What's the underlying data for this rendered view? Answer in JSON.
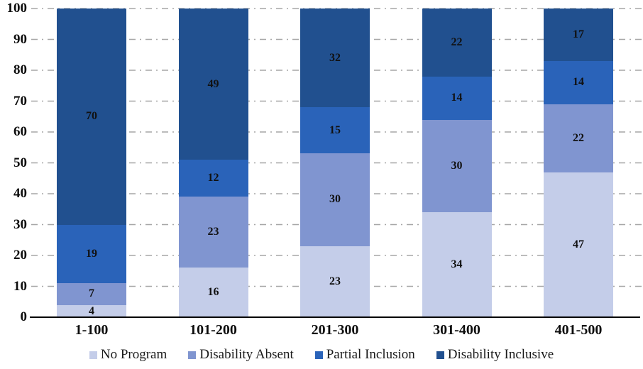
{
  "chart_data": {
    "type": "bar",
    "stacked": true,
    "orientation": "vertical",
    "categories": [
      "1-100",
      "101-200",
      "201-300",
      "301-400",
      "401-500"
    ],
    "series": [
      {
        "name": "No Program",
        "color": "#C4CDE9",
        "values": [
          4,
          16,
          23,
          34,
          47
        ]
      },
      {
        "name": "Disability Absent",
        "color": "#8095D0",
        "values": [
          7,
          23,
          30,
          30,
          22
        ]
      },
      {
        "name": "Partial Inclusion",
        "color": "#2A63B9",
        "values": [
          19,
          12,
          15,
          14,
          14
        ]
      },
      {
        "name": "Disability Inclusive",
        "color": "#21508F",
        "values": [
          70,
          49,
          32,
          22,
          17
        ]
      }
    ],
    "ylim": [
      0,
      100
    ],
    "yticks": [
      0,
      10,
      20,
      30,
      40,
      50,
      60,
      70,
      80,
      90,
      100
    ],
    "grid": "horizontal dash-dot",
    "grid_color": "#A6A6A6",
    "axis_color": "#000000",
    "legend_position": "bottom",
    "data_labels": true
  }
}
